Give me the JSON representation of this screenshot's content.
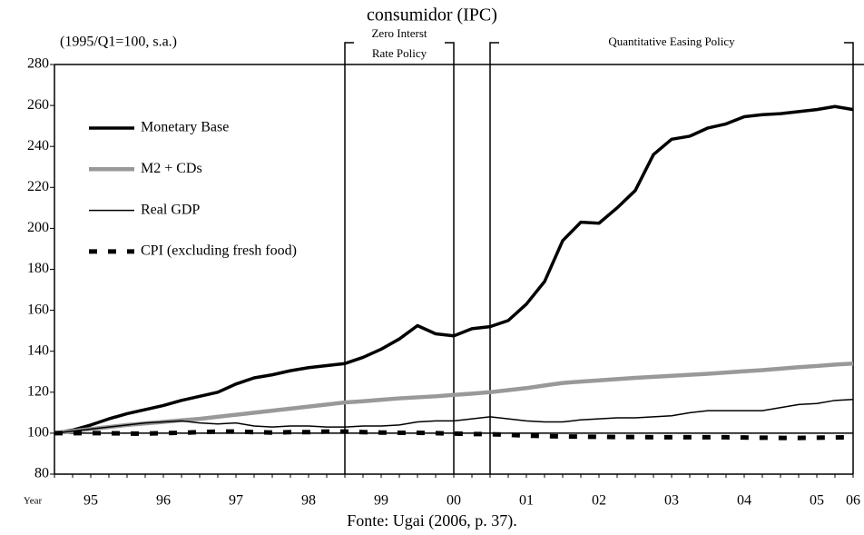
{
  "chart_data": {
    "type": "line",
    "title": "consumidor (IPC)",
    "annotations": {
      "base": "(1995/Q1=100, s.a.)",
      "zero_rate_policy": [
        "Zero Interst",
        "Rate Policy"
      ],
      "qe_policy": "Quantitative Easing Policy"
    },
    "x_label": "Year",
    "source": "Fonte: Ugai (2006, p. 37).",
    "categories": [
      null,
      null,
      "95",
      null,
      null,
      null,
      "96",
      null,
      null,
      null,
      "97",
      null,
      null,
      null,
      "98",
      null,
      null,
      null,
      "99",
      null,
      null,
      null,
      "00",
      null,
      null,
      null,
      "01",
      null,
      null,
      null,
      "02",
      null,
      null,
      null,
      "03",
      null,
      null,
      null,
      "04",
      null,
      null,
      null,
      "05",
      null,
      "06"
    ],
    "series": [
      {
        "name": "Monetary Base",
        "color": "#000000",
        "values": [
          100,
          101.5,
          104,
          107,
          109.5,
          111.5,
          113.5,
          116,
          118,
          120,
          124,
          127,
          128.5,
          130.5,
          132,
          133,
          134,
          137,
          141,
          146,
          152.5,
          148.5,
          147.5,
          151,
          152,
          155,
          163,
          174,
          194,
          203,
          202.5,
          210,
          218.5,
          236,
          243.5,
          245,
          249,
          251,
          254.5,
          255.5,
          256,
          257,
          258,
          259.5,
          258
        ]
      },
      {
        "name": "M2 + CDs",
        "color": "#999999",
        "values": [
          100,
          101,
          102,
          103,
          104,
          104.8,
          105.5,
          106.3,
          107,
          108,
          109,
          110,
          111,
          112,
          113,
          114,
          115,
          115.6,
          116.3,
          117,
          117.5,
          118,
          118.7,
          119.3,
          120,
          121,
          122,
          123.3,
          124.5,
          125.2,
          125.8,
          126.4,
          127,
          127.5,
          128,
          128.5,
          129,
          129.6,
          130.2,
          130.8,
          131.5,
          132.2,
          132.8,
          133.5,
          134
        ]
      },
      {
        "name": "Real GDP",
        "color": "#000000",
        "values": [
          100,
          101,
          102,
          103,
          104,
          105,
          105.5,
          106,
          105,
          104.5,
          105,
          103.5,
          103,
          103.5,
          103.5,
          103,
          103,
          103.5,
          103.5,
          104,
          105.5,
          106,
          106,
          107,
          108,
          107,
          106,
          105.5,
          105.5,
          106.5,
          107,
          107.5,
          107.5,
          108,
          108.5,
          110,
          111,
          111,
          111,
          111,
          112.5,
          114,
          114.5,
          116,
          116.5
        ]
      },
      {
        "name": "CPI (excluding fresh food)",
        "color": "#000000",
        "values": [
          100,
          100,
          100,
          100,
          99.8,
          99.8,
          100,
          100.2,
          100.5,
          100.8,
          100.8,
          100.5,
          100.3,
          100.5,
          100.5,
          100.8,
          100.8,
          100.5,
          100.3,
          100.2,
          100.2,
          100,
          99.8,
          99.6,
          99.5,
          99.2,
          98.8,
          98.6,
          98.4,
          98.3,
          98.2,
          98.1,
          98.1,
          98,
          98,
          98,
          98,
          98,
          97.9,
          97.8,
          97.7,
          97.7,
          97.8,
          97.9,
          98
        ]
      }
    ],
    "ylim": [
      80,
      280
    ],
    "yticks": [
      80,
      100,
      120,
      140,
      160,
      180,
      200,
      220,
      240,
      260,
      280
    ]
  }
}
